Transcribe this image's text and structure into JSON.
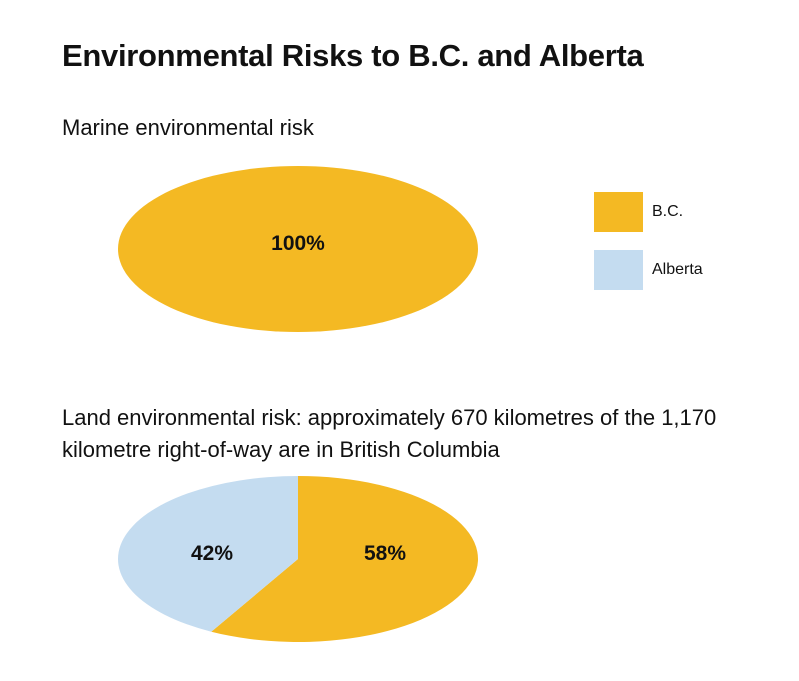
{
  "title": "Environmental Risks to B.C. and Alberta",
  "colors": {
    "bc": "#F4B923",
    "alberta": "#C4DCF0"
  },
  "legend": [
    {
      "label": "B.C.",
      "color": "#F4B923"
    },
    {
      "label": "Alberta",
      "color": "#C4DCF0"
    }
  ],
  "chart_data": [
    {
      "type": "pie",
      "title": "Marine environmental risk",
      "categories": [
        "B.C."
      ],
      "values": [
        100
      ],
      "labels": [
        "100%"
      ]
    },
    {
      "type": "pie",
      "title": "Land environmental risk: approximately 670 kilometres of the 1,170 kilometre right-of-way are in British Columbia",
      "categories": [
        "B.C.",
        "Alberta"
      ],
      "values": [
        58,
        42
      ],
      "labels": [
        "58%",
        "42%"
      ]
    }
  ]
}
